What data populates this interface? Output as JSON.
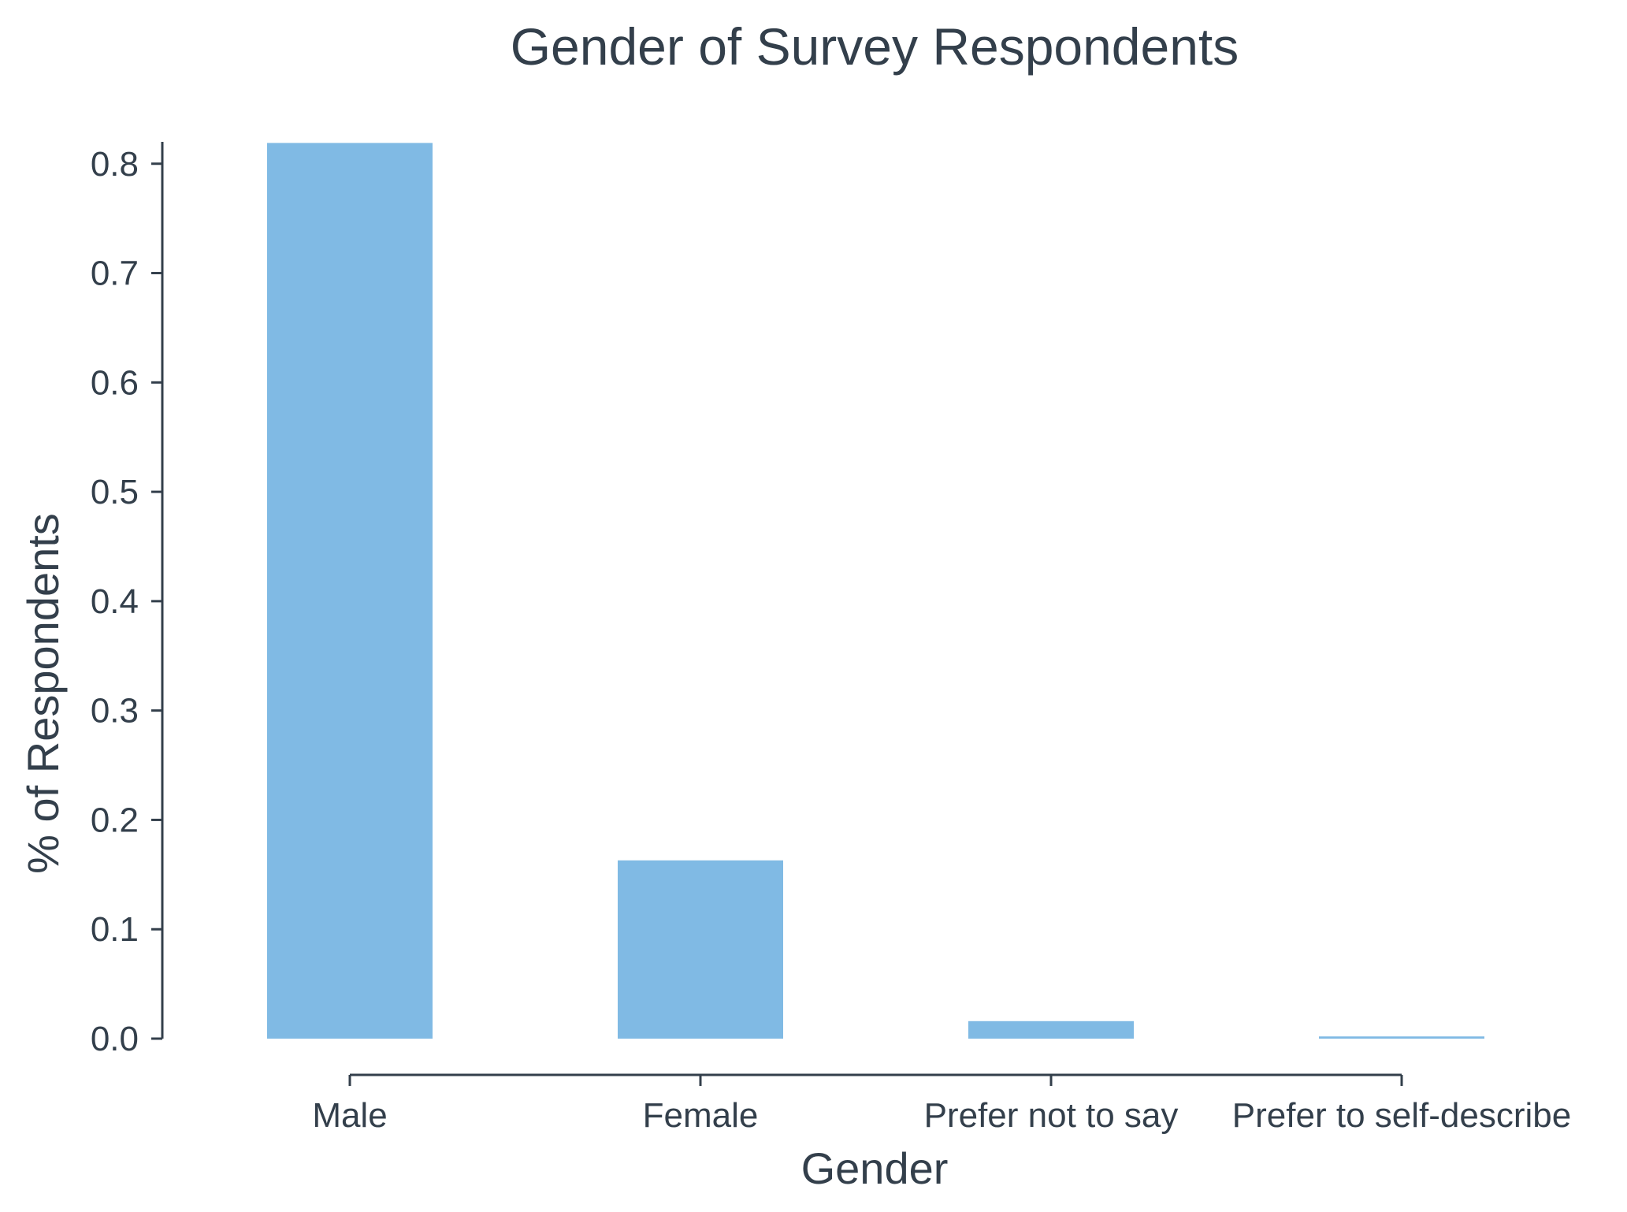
{
  "chart_data": {
    "type": "bar",
    "title": "Gender of Survey Respondents",
    "xlabel": "Gender",
    "ylabel": "% of Respondents",
    "categories": [
      "Male",
      "Female",
      "Prefer not to say",
      "Prefer to self-describe"
    ],
    "values": [
      0.819,
      0.163,
      0.016,
      0.002
    ],
    "ylim": [
      0,
      0.82
    ],
    "yticks": [
      0.0,
      0.1,
      0.2,
      0.3,
      0.4,
      0.5,
      0.6,
      0.7,
      0.8
    ],
    "ytick_labels": [
      "0.0",
      "0.1",
      "0.2",
      "0.3",
      "0.4",
      "0.5",
      "0.6",
      "0.7",
      "0.8"
    ],
    "bar_color": "#80bae4",
    "axis_color": "#333f4b",
    "grid": false,
    "legend": "none"
  }
}
